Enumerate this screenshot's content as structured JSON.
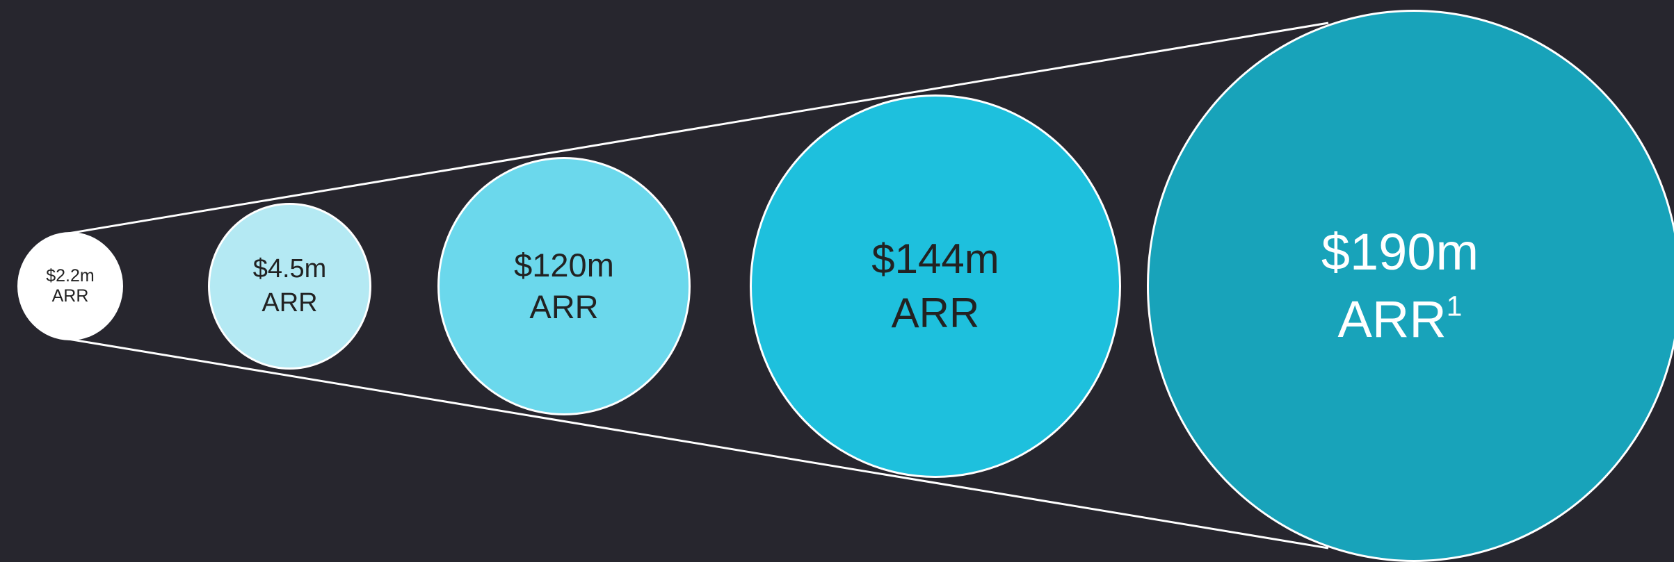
{
  "stages": [
    {
      "amount": "$2.2m",
      "label": "ARR",
      "sup": "",
      "fill": "#ffffff"
    },
    {
      "amount": "$4.5m",
      "label": "ARR",
      "sup": "",
      "fill": "#b4e9f3"
    },
    {
      "amount": "$120m",
      "label": "ARR",
      "sup": "",
      "fill": "#6bd8ec"
    },
    {
      "amount": "$144m",
      "label": "ARR",
      "sup": "",
      "fill": "#1ec0dd"
    },
    {
      "amount": "$190m",
      "label": "ARR",
      "sup": "1",
      "fill": "#18a3ba"
    }
  ],
  "colors": {
    "background": "#27262e",
    "outline": "#ffffff"
  }
}
